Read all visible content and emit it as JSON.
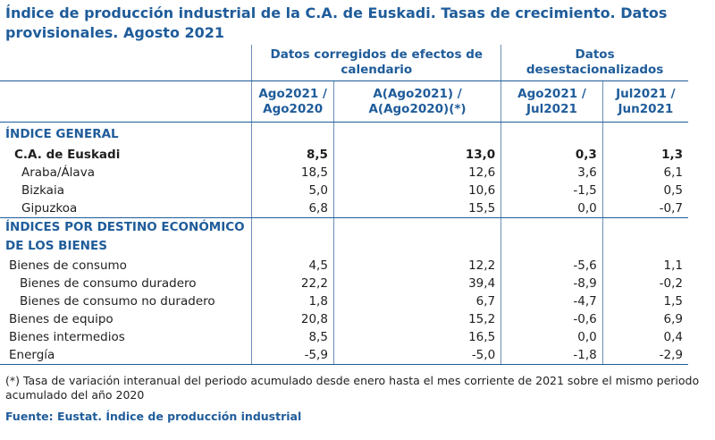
{
  "title": "Índice de producción industrial de la C.A. de Euskadi. Tasas de crecimiento. Datos provisionales. Agosto 2021",
  "header": {
    "group1": "Datos corregidos de efectos de calendario",
    "group2": "Datos desestacionalizados",
    "cols": [
      "Ago2021 / Ago2020",
      "A(Ago2021) / A(Ago2020)(*)",
      "Ago2021 / Jul2021",
      "Jul2021 / Jun2021"
    ]
  },
  "sections": {
    "general": "ÍNDICE GENERAL",
    "destino": "ÍNDICES POR DESTINO ECONÓMICO DE LOS BIENES"
  },
  "rows": [
    {
      "label": "C.A. de Euskadi",
      "values": [
        "8,5",
        "13,0",
        "0,3",
        "1,3"
      ]
    },
    {
      "label": "Araba/Álava",
      "values": [
        "18,5",
        "12,6",
        "3,6",
        "6,1"
      ]
    },
    {
      "label": "Bizkaia",
      "values": [
        "5,0",
        "10,6",
        "-1,5",
        "0,5"
      ]
    },
    {
      "label": "Gipuzkoa",
      "values": [
        "6,8",
        "15,5",
        "0,0",
        "-0,7"
      ]
    },
    {
      "label": "Bienes de consumo",
      "values": [
        "4,5",
        "12,2",
        "-5,6",
        "1,1"
      ]
    },
    {
      "label": "Bienes de consumo duradero",
      "values": [
        "22,2",
        "39,4",
        "-8,9",
        "-0,2"
      ]
    },
    {
      "label": "Bienes de consumo no duradero",
      "values": [
        "1,8",
        "6,7",
        "-4,7",
        "1,5"
      ]
    },
    {
      "label": "Bienes de equipo",
      "values": [
        "20,8",
        "15,2",
        "-0,6",
        "6,9"
      ]
    },
    {
      "label": "Bienes intermedios",
      "values": [
        "8,5",
        "16,5",
        "0,0",
        "0,4"
      ]
    },
    {
      "label": "Energía",
      "values": [
        "-5,9",
        "-5,0",
        "-1,8",
        "-2,9"
      ]
    }
  ],
  "footnote": "(*) Tasa de variación interanual del periodo acumulado desde enero hasta el mes corriente de 2021 sobre el mismo periodo acumulado del año 2020",
  "source": "Fuente: Eustat. Índice de producción industrial"
}
